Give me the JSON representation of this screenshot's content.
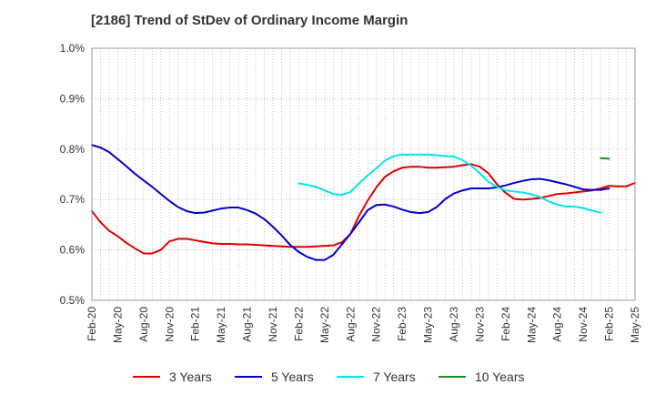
{
  "chart_data": {
    "type": "line",
    "title": "[2186]  Trend of StDev of Ordinary Income Margin",
    "xlabel": "",
    "ylabel": "",
    "y_unit": "%",
    "ylim": [
      0.5,
      1.0
    ],
    "y_ticks": [
      0.5,
      0.6,
      0.7,
      0.8,
      0.9,
      1.0
    ],
    "y_tick_labels": [
      "0.5%",
      "0.6%",
      "0.7%",
      "0.8%",
      "0.9%",
      "1.0%"
    ],
    "x_start": "2020-02",
    "x_end": "2025-05",
    "x_tick_labels": [
      "Feb-20",
      "May-20",
      "Aug-20",
      "Nov-20",
      "Feb-21",
      "May-21",
      "Aug-21",
      "Nov-21",
      "Feb-22",
      "May-22",
      "Aug-22",
      "Nov-22",
      "Feb-23",
      "May-23",
      "Aug-23",
      "Nov-23",
      "Feb-24",
      "May-24",
      "Aug-24",
      "Nov-24",
      "Feb-25",
      "May-25"
    ],
    "grid": "vertical-monthly-dotted, horizontal-major-dotted",
    "legend_position": "bottom",
    "series": [
      {
        "name": "3 Years",
        "color": "#e00000",
        "x_start": "2020-02",
        "values": [
          0.677,
          0.655,
          0.638,
          0.627,
          0.614,
          0.603,
          0.593,
          0.593,
          0.6,
          0.617,
          0.622,
          0.622,
          0.619,
          0.616,
          0.613,
          0.612,
          0.612,
          0.611,
          0.611,
          0.61,
          0.609,
          0.608,
          0.607,
          0.606,
          0.606,
          0.606,
          0.607,
          0.608,
          0.609,
          0.615,
          0.632,
          0.668,
          0.698,
          0.724,
          0.745,
          0.756,
          0.763,
          0.765,
          0.765,
          0.763,
          0.763,
          0.764,
          0.765,
          0.768,
          0.77,
          0.765,
          0.752,
          0.73,
          0.713,
          0.701,
          0.7,
          0.701,
          0.703,
          0.707,
          0.711,
          0.712,
          0.714,
          0.716,
          0.718,
          0.722,
          0.727,
          0.726,
          0.726,
          0.733
        ]
      },
      {
        "name": "5 Years",
        "color": "#0000cc",
        "x_start": "2020-02",
        "values": [
          0.808,
          0.803,
          0.794,
          0.78,
          0.766,
          0.751,
          0.738,
          0.725,
          0.711,
          0.697,
          0.685,
          0.677,
          0.673,
          0.674,
          0.678,
          0.682,
          0.684,
          0.684,
          0.679,
          0.672,
          0.661,
          0.646,
          0.629,
          0.61,
          0.596,
          0.586,
          0.58,
          0.58,
          0.59,
          0.611,
          0.632,
          0.655,
          0.679,
          0.689,
          0.69,
          0.686,
          0.68,
          0.675,
          0.673,
          0.675,
          0.685,
          0.701,
          0.712,
          0.718,
          0.722,
          0.722,
          0.722,
          0.724,
          0.728,
          0.733,
          0.737,
          0.74,
          0.741,
          0.738,
          0.734,
          0.73,
          0.725,
          0.72,
          0.719,
          0.719,
          0.722
        ]
      },
      {
        "name": "7 Years",
        "color": "#00e5ee",
        "x_start": "2022-02",
        "values": [
          0.732,
          0.729,
          0.725,
          0.718,
          0.711,
          0.709,
          0.715,
          0.732,
          0.748,
          0.762,
          0.777,
          0.786,
          0.789,
          0.789,
          0.789,
          0.789,
          0.788,
          0.786,
          0.785,
          0.778,
          0.767,
          0.752,
          0.735,
          0.725,
          0.718,
          0.716,
          0.714,
          0.71,
          0.705,
          0.696,
          0.69,
          0.686,
          0.686,
          0.683,
          0.678,
          0.674
        ]
      },
      {
        "name": "10 Years",
        "color": "#228b22",
        "x_start": "2025-01",
        "values": [
          0.782,
          0.781
        ]
      }
    ]
  }
}
